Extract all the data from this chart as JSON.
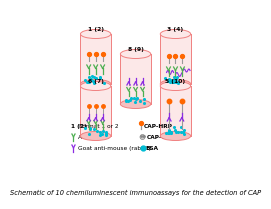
{
  "title": "Schematic of 10 chemiluminescent immunoassays for the detection of CAP",
  "title_fontsize": 4.8,
  "bg_color": "#ffffff",
  "cylinder_edge": "#f08080",
  "cylinder_fill": "#fce8e8",
  "cylinder_top_fill": "#fce8e8",
  "cylinder_bottom_fill": "#f5c0c0",
  "labels": {
    "top_left": "1 (2)",
    "top_right": "3 (4)",
    "middle": "8 (9)",
    "bottom_left": "6 (7)",
    "bottom_right": "5 (10)"
  },
  "teal_dot_color": "#00bcd4",
  "green_y_color": "#4caf50",
  "purple_y_color": "#8b2be2",
  "orange_top_color": "#ff6600",
  "gray_stem_color": "#999999",
  "gray_dark_color": "#666666"
}
